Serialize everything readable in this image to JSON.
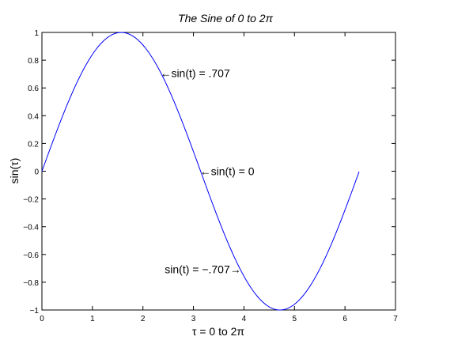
{
  "chart_data": {
    "type": "line",
    "title": "The Sine of 0 to 2π",
    "xlabel": "τ = 0 to 2π",
    "ylabel": "sin(τ)",
    "xlim": [
      0,
      7
    ],
    "ylim": [
      -1,
      1
    ],
    "xticks": [
      0,
      1,
      2,
      3,
      4,
      5,
      6,
      7
    ],
    "xtick_labels": [
      "0",
      "1",
      "2",
      "3",
      "4",
      "5",
      "6",
      "7"
    ],
    "yticks": [
      -1,
      -0.8,
      -0.6,
      -0.4,
      -0.2,
      0,
      0.2,
      0.4,
      0.6,
      0.8,
      1
    ],
    "ytick_labels": [
      "−1",
      "−0.8",
      "−0.6",
      "−0.4",
      "−0.2",
      "0",
      "0.2",
      "0.4",
      "0.6",
      "0.8",
      "1"
    ],
    "grid": false,
    "line_color": "#0000ff",
    "series": [
      {
        "function": "sin",
        "x_start": 0,
        "x_end": 6.2832,
        "step": 0.0314,
        "values_sample": [
          {
            "x": 0,
            "y": 0
          },
          {
            "x": 0.785,
            "y": 0.707
          },
          {
            "x": 1.571,
            "y": 1
          },
          {
            "x": 2.356,
            "y": 0.707
          },
          {
            "x": 3.142,
            "y": 0
          },
          {
            "x": 3.927,
            "y": -0.707
          },
          {
            "x": 4.712,
            "y": -1
          },
          {
            "x": 5.498,
            "y": -0.707
          },
          {
            "x": 6.283,
            "y": 0
          }
        ]
      }
    ],
    "annotations": [
      {
        "text": "←sin(t) = .707",
        "x": 2.356,
        "y": 0.707,
        "align": "left"
      },
      {
        "text": "←sin(t) = 0",
        "x": 3.142,
        "y": 0,
        "align": "left"
      },
      {
        "text": "sin(t) = −.707→",
        "x": 3.927,
        "y": -0.707,
        "align": "right"
      }
    ]
  }
}
